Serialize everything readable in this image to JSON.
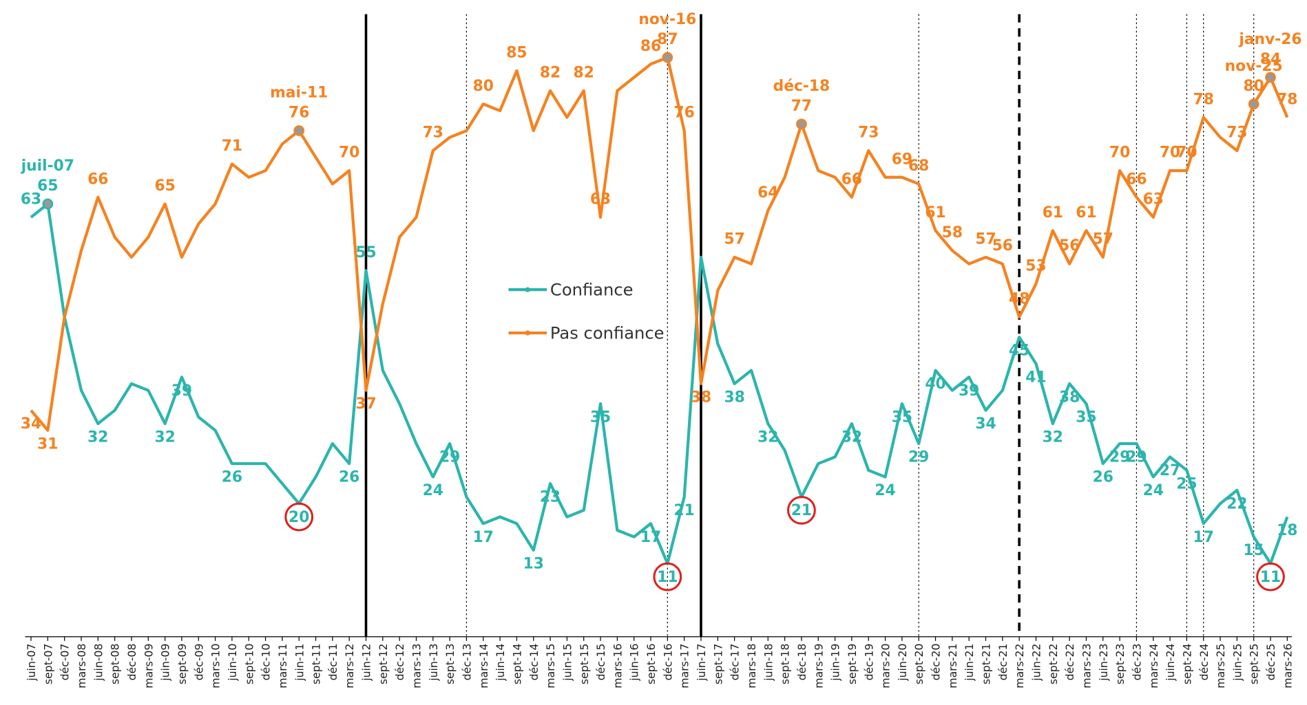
{
  "chart_data": {
    "type": "line",
    "categories": [
      "juin-07",
      "sept-07",
      "déc-07",
      "mars-08",
      "juin-08",
      "sept-08",
      "déc-08",
      "mars-09",
      "juin-09",
      "sept-09",
      "déc-09",
      "mars-10",
      "juin-10",
      "sept-10",
      "déc-10",
      "mars-11",
      "juin-11",
      "sept-11",
      "déc-11",
      "mars-12",
      "juin-12",
      "sept-12",
      "déc-12",
      "mars-13",
      "juin-13",
      "sept-13",
      "déc-13",
      "mars-14",
      "juin-14",
      "sept-14",
      "déc-14",
      "mars-15",
      "juin-15",
      "sept-15",
      "déc-15",
      "mars-16",
      "juin-16",
      "sept-16",
      "déc-16",
      "mars-17",
      "juin-17",
      "sept-17",
      "déc-17",
      "mars-18",
      "juin-18",
      "sept-18",
      "déc-18",
      "mars-19",
      "juin-19",
      "sept-19",
      "déc-19",
      "mars-20",
      "juin-20",
      "sept-20",
      "déc-20",
      "mars-21",
      "juin-21",
      "sept-21",
      "déc-21",
      "mars-22",
      "juin-22",
      "sept-22",
      "déc-22",
      "mars-23",
      "juin-23",
      "sept-23",
      "déc-23",
      "mars-24",
      "juin-24",
      "sept-24",
      "déc-24",
      "mars-25",
      "juin-25",
      "sept-25",
      "déc-25",
      "mars-26"
    ],
    "series": [
      {
        "name": "Confiance",
        "color": "#2bb5ad",
        "values": [
          63,
          65,
          48,
          37,
          32,
          34,
          38,
          37,
          32,
          39,
          33,
          31,
          26,
          26,
          26,
          23,
          20,
          24,
          29,
          26,
          55,
          40,
          35,
          29,
          24,
          29,
          21,
          17,
          18,
          17,
          13,
          23,
          18,
          19,
          35,
          16,
          15,
          17,
          11,
          21,
          57,
          44,
          38,
          40,
          32,
          28,
          21,
          26,
          27,
          32,
          25,
          24,
          35,
          29,
          40,
          37,
          39,
          34,
          37,
          45,
          41,
          32,
          38,
          35,
          26,
          29,
          29,
          24,
          27,
          25,
          17,
          20,
          22,
          15,
          11,
          18
        ],
        "value_labels": [
          "63",
          "65",
          null,
          null,
          "32",
          null,
          null,
          null,
          "32",
          "39",
          null,
          null,
          "26",
          null,
          null,
          null,
          "20",
          null,
          null,
          "26",
          "55",
          null,
          null,
          null,
          "24",
          "29",
          null,
          "17",
          null,
          null,
          "13",
          "23",
          null,
          null,
          "35",
          null,
          null,
          "17",
          "11",
          "21",
          null,
          null,
          "38",
          null,
          "32",
          null,
          "21",
          null,
          null,
          "32",
          null,
          "24",
          "35",
          "29",
          "40",
          null,
          "39",
          "34",
          null,
          "45",
          "41",
          "32",
          "38",
          "35",
          "26",
          "29",
          "29",
          "24",
          "27",
          "25",
          "17",
          null,
          "22",
          "15",
          "11",
          "18"
        ],
        "circled": [
          "juin-11",
          "déc-16",
          "déc-18",
          "déc-25"
        ],
        "marked": [
          "sept-07"
        ]
      },
      {
        "name": "Pas confiance",
        "color": "#f5821f",
        "values": [
          34,
          31,
          48,
          58,
          66,
          60,
          57,
          60,
          65,
          57,
          62,
          65,
          71,
          69,
          70,
          74,
          76,
          72,
          68,
          70,
          37,
          50,
          60,
          63,
          73,
          75,
          76,
          80,
          79,
          85,
          76,
          82,
          78,
          82,
          63,
          82,
          84,
          86,
          87,
          76,
          38,
          52,
          57,
          56,
          64,
          69,
          77,
          70,
          69,
          66,
          73,
          69,
          69,
          68,
          61,
          58,
          56,
          57,
          56,
          48,
          53,
          61,
          56,
          61,
          57,
          70,
          66,
          63,
          70,
          70,
          78,
          75,
          73,
          80,
          84,
          78
        ],
        "value_labels": [
          "34",
          "31",
          null,
          null,
          "66",
          null,
          null,
          null,
          "65",
          null,
          null,
          null,
          "71",
          null,
          null,
          null,
          "76",
          null,
          null,
          "70",
          "37",
          null,
          null,
          null,
          "73",
          null,
          null,
          "80",
          null,
          "85",
          null,
          "82",
          null,
          "82",
          "63",
          null,
          null,
          "86",
          "87",
          "76",
          "38",
          null,
          "57",
          null,
          "64",
          null,
          "77",
          null,
          null,
          "66",
          "73",
          null,
          "69",
          "68",
          "61",
          "58",
          null,
          "57",
          "56",
          "48",
          "53",
          "61",
          "56",
          "61",
          "57",
          "70",
          "66",
          "63",
          "70",
          "70",
          "78",
          null,
          "73",
          "80",
          "84",
          "78"
        ],
        "marked": [
          "juin-11",
          "déc-16",
          "déc-18",
          "sept-25",
          "déc-25"
        ]
      }
    ],
    "annotations": [
      {
        "text": "juil-07",
        "series": "Confiance",
        "x": "sept-07"
      },
      {
        "text": "mai-11",
        "series": "Pas confiance",
        "x": "juin-11"
      },
      {
        "text": "nov-16",
        "series": "Pas confiance",
        "x": "déc-16"
      },
      {
        "text": "déc-18",
        "series": "Pas confiance",
        "x": "déc-18"
      },
      {
        "text": "nov-25",
        "series": "Pas confiance",
        "x": "sept-25"
      },
      {
        "text": "janv-26",
        "series": "Pas confiance",
        "x": "déc-25"
      }
    ],
    "reference_lines": [
      {
        "x": "juin-12",
        "style": "solid"
      },
      {
        "x": "déc-13",
        "style": "dotted"
      },
      {
        "x": "déc-16",
        "style": "dotted"
      },
      {
        "x": "juin-17",
        "style": "solid"
      },
      {
        "x": "sept-20",
        "style": "dotted"
      },
      {
        "x": "mars-22",
        "style": "dashed"
      },
      {
        "x": "déc-23",
        "style": "dotted"
      },
      {
        "x": "sept-24",
        "style": "dotted"
      },
      {
        "x": "déc-24",
        "style": "dotted"
      },
      {
        "x": "sept-25",
        "style": "dotted"
      }
    ],
    "ylim": [
      0,
      95
    ],
    "legend": "center"
  }
}
